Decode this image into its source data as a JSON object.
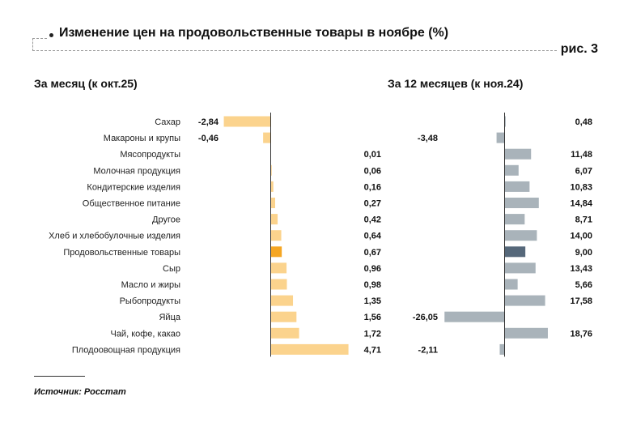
{
  "header": {
    "title": "Изменение цен на продовольственные товары в ноябре (%)",
    "figure_label": "рис. 3"
  },
  "colors": {
    "left_bar": "#fbd38d",
    "left_highlight": "#f5a623",
    "right_bar": "#a9b3ba",
    "right_highlight": "#56687a",
    "axis": "#333333"
  },
  "chart_data": [
    {
      "type": "bar",
      "orientation": "horizontal",
      "title": "За месяц (к окт.25)",
      "categories": [
        "Сахар",
        "Макароны и крупы",
        "Мясопродукты",
        "Молочная продукция",
        "Кондитерские изделия",
        "Общественное питание",
        "Другое",
        "Хлеб и хлебобулочные изделия",
        "Продовольственные товары",
        "Сыр",
        "Масло и жиры",
        "Рыбопродукты",
        "Яйца",
        "Чай, кофе, какао",
        "Плодоовощная продукция"
      ],
      "values": [
        -2.84,
        -0.46,
        0.01,
        0.06,
        0.16,
        0.27,
        0.42,
        0.64,
        0.67,
        0.96,
        0.98,
        1.35,
        1.56,
        1.72,
        4.71
      ],
      "labels": [
        "-2,84",
        "-0,46",
        "0,01",
        "0,06",
        "0,16",
        "0,27",
        "0,42",
        "0,64",
        "0,67",
        "0,96",
        "0,98",
        "1,35",
        "1,56",
        "1,72",
        "4,71"
      ],
      "highlight": "Продовольственные товары"
    },
    {
      "type": "bar",
      "orientation": "horizontal",
      "title": "За 12 месяцев (к ноя.24)",
      "categories": [
        "Сахар",
        "Макароны и крупы",
        "Мясопродукты",
        "Молочная продукция",
        "Кондитерские изделия",
        "Общественное питание",
        "Другое",
        "Хлеб и хлебобулочные изделия",
        "Продовольственные товары",
        "Сыр",
        "Масло и жиры",
        "Рыбопродукты",
        "Яйца",
        "Чай, кофе, какао",
        "Плодоовощная продукция"
      ],
      "values": [
        0.48,
        -3.48,
        11.48,
        6.07,
        10.83,
        14.84,
        8.71,
        14.0,
        9.0,
        13.43,
        5.66,
        17.58,
        -26.05,
        18.76,
        -2.11
      ],
      "labels": [
        "0,48",
        "-3,48",
        "11,48",
        "6,07",
        "10,83",
        "14,84",
        "8,71",
        "14,00",
        "9,00",
        "13,43",
        "5,66",
        "17,58",
        "-26,05",
        "18,76",
        "-2,11"
      ],
      "highlight": "Продовольственные товары"
    }
  ],
  "footer": {
    "source": "Источник: Росстат"
  }
}
